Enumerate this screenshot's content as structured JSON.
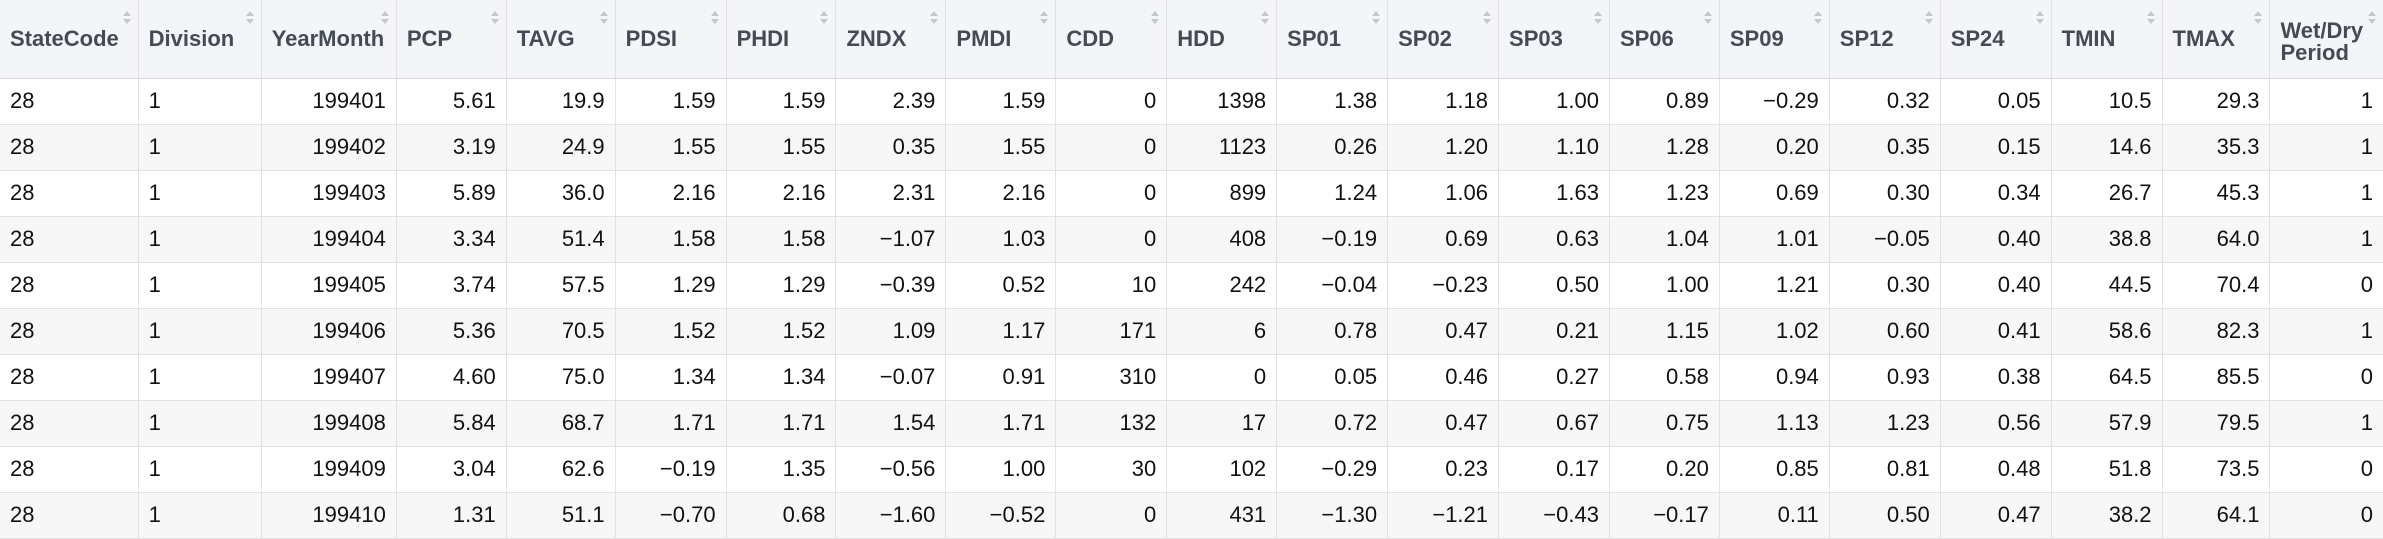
{
  "columns": [
    "StateCode",
    "Division",
    "YearMonth",
    "PCP",
    "TAVG",
    "PDSI",
    "PHDI",
    "ZNDX",
    "PMDI",
    "CDD",
    "HDD",
    "SP01",
    "SP02",
    "SP03",
    "SP06",
    "SP09",
    "SP12",
    "SP24",
    "TMIN",
    "TMAX",
    "Wet/Dry Period"
  ],
  "rows": [
    [
      "28",
      "1",
      "199401",
      "5.61",
      "19.9",
      "1.59",
      "1.59",
      "2.39",
      "1.59",
      "0",
      "1398",
      "1.38",
      "1.18",
      "1.00",
      "0.89",
      "−0.29",
      "0.32",
      "0.05",
      "10.5",
      "29.3",
      "1"
    ],
    [
      "28",
      "1",
      "199402",
      "3.19",
      "24.9",
      "1.55",
      "1.55",
      "0.35",
      "1.55",
      "0",
      "1123",
      "0.26",
      "1.20",
      "1.10",
      "1.28",
      "0.20",
      "0.35",
      "0.15",
      "14.6",
      "35.3",
      "1"
    ],
    [
      "28",
      "1",
      "199403",
      "5.89",
      "36.0",
      "2.16",
      "2.16",
      "2.31",
      "2.16",
      "0",
      "899",
      "1.24",
      "1.06",
      "1.63",
      "1.23",
      "0.69",
      "0.30",
      "0.34",
      "26.7",
      "45.3",
      "1"
    ],
    [
      "28",
      "1",
      "199404",
      "3.34",
      "51.4",
      "1.58",
      "1.58",
      "−1.07",
      "1.03",
      "0",
      "408",
      "−0.19",
      "0.69",
      "0.63",
      "1.04",
      "1.01",
      "−0.05",
      "0.40",
      "38.8",
      "64.0",
      "1"
    ],
    [
      "28",
      "1",
      "199405",
      "3.74",
      "57.5",
      "1.29",
      "1.29",
      "−0.39",
      "0.52",
      "10",
      "242",
      "−0.04",
      "−0.23",
      "0.50",
      "1.00",
      "1.21",
      "0.30",
      "0.40",
      "44.5",
      "70.4",
      "0"
    ],
    [
      "28",
      "1",
      "199406",
      "5.36",
      "70.5",
      "1.52",
      "1.52",
      "1.09",
      "1.17",
      "171",
      "6",
      "0.78",
      "0.47",
      "0.21",
      "1.15",
      "1.02",
      "0.60",
      "0.41",
      "58.6",
      "82.3",
      "1"
    ],
    [
      "28",
      "1",
      "199407",
      "4.60",
      "75.0",
      "1.34",
      "1.34",
      "−0.07",
      "0.91",
      "310",
      "0",
      "0.05",
      "0.46",
      "0.27",
      "0.58",
      "0.94",
      "0.93",
      "0.38",
      "64.5",
      "85.5",
      "0"
    ],
    [
      "28",
      "1",
      "199408",
      "5.84",
      "68.7",
      "1.71",
      "1.71",
      "1.54",
      "1.71",
      "132",
      "17",
      "0.72",
      "0.47",
      "0.67",
      "0.75",
      "1.13",
      "1.23",
      "0.56",
      "57.9",
      "79.5",
      "1"
    ],
    [
      "28",
      "1",
      "199409",
      "3.04",
      "62.6",
      "−0.19",
      "1.35",
      "−0.56",
      "1.00",
      "30",
      "102",
      "−0.29",
      "0.23",
      "0.17",
      "0.20",
      "0.85",
      "0.81",
      "0.48",
      "51.8",
      "73.5",
      "0"
    ],
    [
      "28",
      "1",
      "199410",
      "1.31",
      "51.1",
      "−0.70",
      "0.68",
      "−1.60",
      "−0.52",
      "0",
      "431",
      "−1.30",
      "−1.21",
      "−0.43",
      "−0.17",
      "0.11",
      "0.50",
      "0.47",
      "38.2",
      "64.1",
      "0"
    ]
  ]
}
